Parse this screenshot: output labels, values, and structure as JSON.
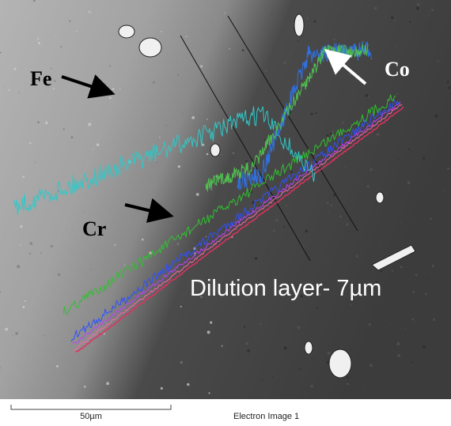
{
  "image": {
    "annotations": {
      "fe": "Fe",
      "cr": "Cr",
      "co": "Co",
      "dilution": "Dilution layer- 7µm"
    },
    "footer": {
      "scale_bar": "50µm",
      "caption": "Electron Image 1"
    }
  }
}
